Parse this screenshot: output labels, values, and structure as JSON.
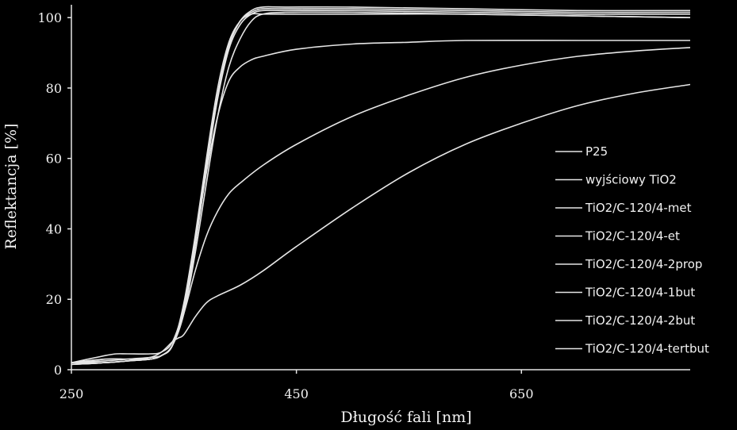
{
  "chart_data": {
    "type": "line",
    "title": "",
    "xlabel": "Długość fali [nm]",
    "ylabel": "Reflektancja [%]",
    "xlim": [
      250,
      800
    ],
    "ylim": [
      0,
      105
    ],
    "x_ticks": [
      "250",
      "450",
      "650"
    ],
    "x_tick_values": [
      250,
      450,
      650
    ],
    "y_ticks": [
      "0",
      "20",
      "40",
      "60",
      "80",
      "100"
    ],
    "y_tick_values": [
      0,
      20,
      40,
      60,
      80,
      100
    ],
    "grid": false,
    "legend_position": "right",
    "colors": {
      "background": "#000000",
      "line": "#e6e6e6",
      "text": "#f2f2f2"
    },
    "series": [
      {
        "name": "P25",
        "x": [
          250,
          280,
          300,
          320,
          330,
          340,
          350,
          360,
          370,
          380,
          390,
          400,
          410,
          420,
          440,
          500,
          600,
          700,
          800
        ],
        "y": [
          2,
          3,
          3,
          3,
          4,
          7,
          18,
          37,
          58,
          78,
          92,
          99,
          102,
          103,
          103,
          103,
          102.5,
          102,
          102
        ]
      },
      {
        "name": "wyjściowy TiO2",
        "x": [
          250,
          280,
          300,
          320,
          330,
          340,
          350,
          360,
          370,
          380,
          390,
          400,
          410,
          420,
          440,
          500,
          600,
          700,
          800
        ],
        "y": [
          2,
          3,
          3,
          3,
          4,
          7,
          19,
          38,
          60,
          80,
          93,
          99,
          101,
          101,
          101,
          101,
          101,
          100.5,
          100
        ]
      },
      {
        "name": "TiO2/C-120/4-met",
        "x": [
          250,
          280,
          300,
          320,
          330,
          340,
          350,
          360,
          370,
          380,
          390,
          400,
          410,
          420,
          440,
          500,
          600,
          700,
          800
        ],
        "y": [
          1.5,
          2,
          2.5,
          3,
          4,
          7,
          17,
          35,
          57,
          77,
          91,
          98,
          101,
          102,
          102,
          102,
          101.5,
          101,
          101
        ]
      },
      {
        "name": "TiO2/C-120/4-et",
        "x": [
          250,
          280,
          300,
          320,
          330,
          340,
          350,
          360,
          370,
          380,
          390,
          400,
          410,
          420,
          440,
          500,
          600,
          700,
          800
        ],
        "y": [
          2,
          2,
          2.5,
          3,
          4,
          7,
          18,
          36,
          58,
          78,
          92,
          99,
          101.5,
          102.5,
          102.5,
          102.5,
          102,
          101.5,
          101.5
        ]
      },
      {
        "name": "TiO2/C-120/4-2prop",
        "x": [
          250,
          280,
          300,
          320,
          330,
          340,
          350,
          360,
          370,
          380,
          390,
          400,
          410,
          420,
          440,
          500,
          600,
          700,
          800
        ],
        "y": [
          1.5,
          2,
          2.5,
          3,
          4,
          7,
          16,
          33,
          53,
          72,
          86,
          94,
          99,
          101,
          101.5,
          101.5,
          101,
          100.5,
          100
        ]
      },
      {
        "name": "TiO2/C-120/4-1but",
        "x": [
          250,
          280,
          290,
          300,
          320,
          330,
          340,
          350,
          360,
          370,
          380,
          390,
          400,
          410,
          420,
          450,
          500,
          550,
          600,
          700,
          800
        ],
        "y": [
          2,
          4,
          4.5,
          4.5,
          4.5,
          5,
          8,
          18,
          36,
          56,
          72,
          82,
          86,
          88,
          89,
          91,
          92.5,
          93,
          93.5,
          93.5,
          93.5
        ]
      },
      {
        "name": "TiO2/C-120/4-2but",
        "x": [
          250,
          280,
          300,
          320,
          330,
          340,
          350,
          360,
          370,
          380,
          390,
          400,
          420,
          450,
          500,
          550,
          600,
          650,
          700,
          750,
          800
        ],
        "y": [
          2,
          2.5,
          3,
          3.5,
          4,
          7,
          16,
          28,
          38,
          45,
          50,
          53,
          58,
          64,
          72,
          78,
          83,
          86.5,
          89,
          90.5,
          91.5
        ]
      },
      {
        "name": "TiO2/C-120/4-tertbut",
        "x": [
          250,
          280,
          300,
          320,
          330,
          340,
          345,
          350,
          360,
          370,
          380,
          400,
          420,
          450,
          500,
          550,
          600,
          650,
          700,
          750,
          800
        ],
        "y": [
          1.5,
          2,
          2.5,
          3.5,
          5,
          8,
          9,
          10,
          15,
          19,
          21,
          24,
          28,
          35,
          46,
          56,
          64,
          70,
          75,
          78.5,
          81
        ]
      }
    ]
  }
}
